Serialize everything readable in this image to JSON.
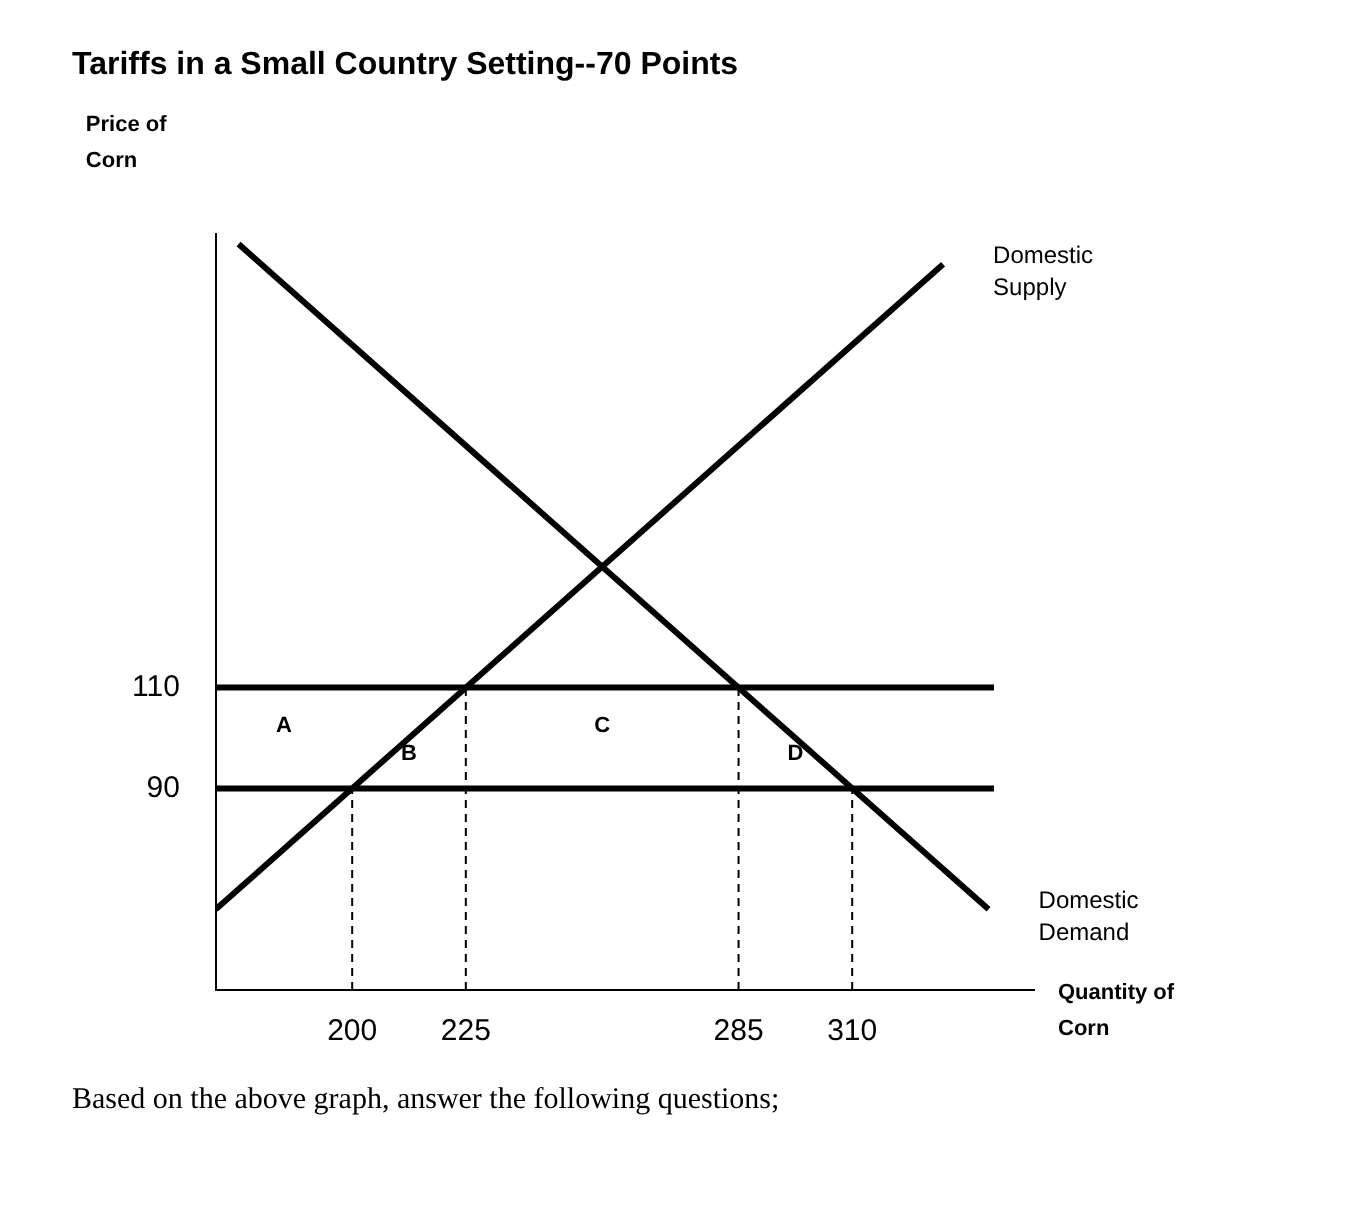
{
  "chart_data": {
    "type": "line",
    "title": "Tariffs in a Small Country Setting--70 Points",
    "xlabel": "Quantity of Corn",
    "ylabel": "Price of Corn",
    "xlim": [
      170,
      350
    ],
    "ylim": [
      50,
      200
    ],
    "xticks": [
      200,
      225,
      285,
      310
    ],
    "yticks": [
      90,
      110
    ],
    "grid": false,
    "legend": false,
    "marker": "none",
    "series": [
      {
        "name": "Domestic Supply",
        "color": "#000000",
        "x": [
          170,
          330
        ],
        "values": [
          66,
          194
        ]
      },
      {
        "name": "Domestic Demand",
        "color": "#000000",
        "x": [
          175,
          340
        ],
        "values": [
          198,
          66
        ]
      },
      {
        "color": "#000000",
        "line_style": "dashed",
        "x": [
          200,
          200
        ],
        "values": [
          50,
          90
        ]
      },
      {
        "color": "#000000",
        "line_style": "dashed",
        "x": [
          225,
          225
        ],
        "values": [
          50,
          110
        ]
      },
      {
        "color": "#000000",
        "line_style": "dashed",
        "x": [
          285,
          285
        ],
        "values": [
          50,
          110
        ]
      },
      {
        "color": "#000000",
        "line_style": "dashed",
        "x": [
          310,
          310
        ],
        "values": [
          50,
          90
        ]
      }
    ],
    "ref_lines": [
      {
        "axis": "y",
        "value": 110,
        "color": "#000000"
      },
      {
        "axis": "y",
        "value": 90,
        "color": "#000000"
      }
    ],
    "annotations": [
      "A",
      "B",
      "C",
      "D",
      "Based on the above graph, answer the following questions;"
    ]
  }
}
